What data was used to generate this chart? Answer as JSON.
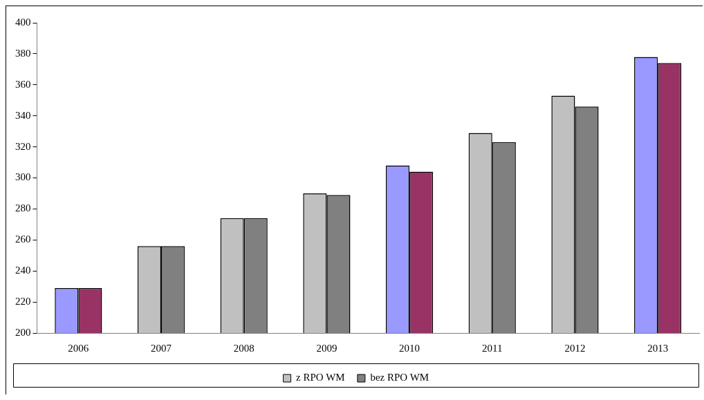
{
  "chart_data": {
    "type": "bar",
    "categories": [
      "2006",
      "2007",
      "2008",
      "2009",
      "2010",
      "2011",
      "2012",
      "2013"
    ],
    "series": [
      {
        "name": "z RPO WM",
        "color": "#c0c0c0",
        "colors": [
          "#9999ff",
          "#c0c0c0",
          "#c0c0c0",
          "#c0c0c0",
          "#9999ff",
          "#c0c0c0",
          "#c0c0c0",
          "#9999ff"
        ],
        "values": [
          229,
          256,
          274,
          290,
          308,
          329,
          353,
          378
        ]
      },
      {
        "name": "bez RPO WM",
        "color": "#808080",
        "colors": [
          "#993366",
          "#808080",
          "#808080",
          "#808080",
          "#993366",
          "#808080",
          "#808080",
          "#993366"
        ],
        "values": [
          229,
          256,
          274,
          289,
          304,
          323,
          346,
          374
        ]
      }
    ],
    "ylim": [
      200,
      400
    ],
    "yticks": [
      200,
      220,
      240,
      260,
      280,
      300,
      320,
      340,
      360,
      380,
      400
    ],
    "grid": false,
    "legend": "bottom"
  }
}
